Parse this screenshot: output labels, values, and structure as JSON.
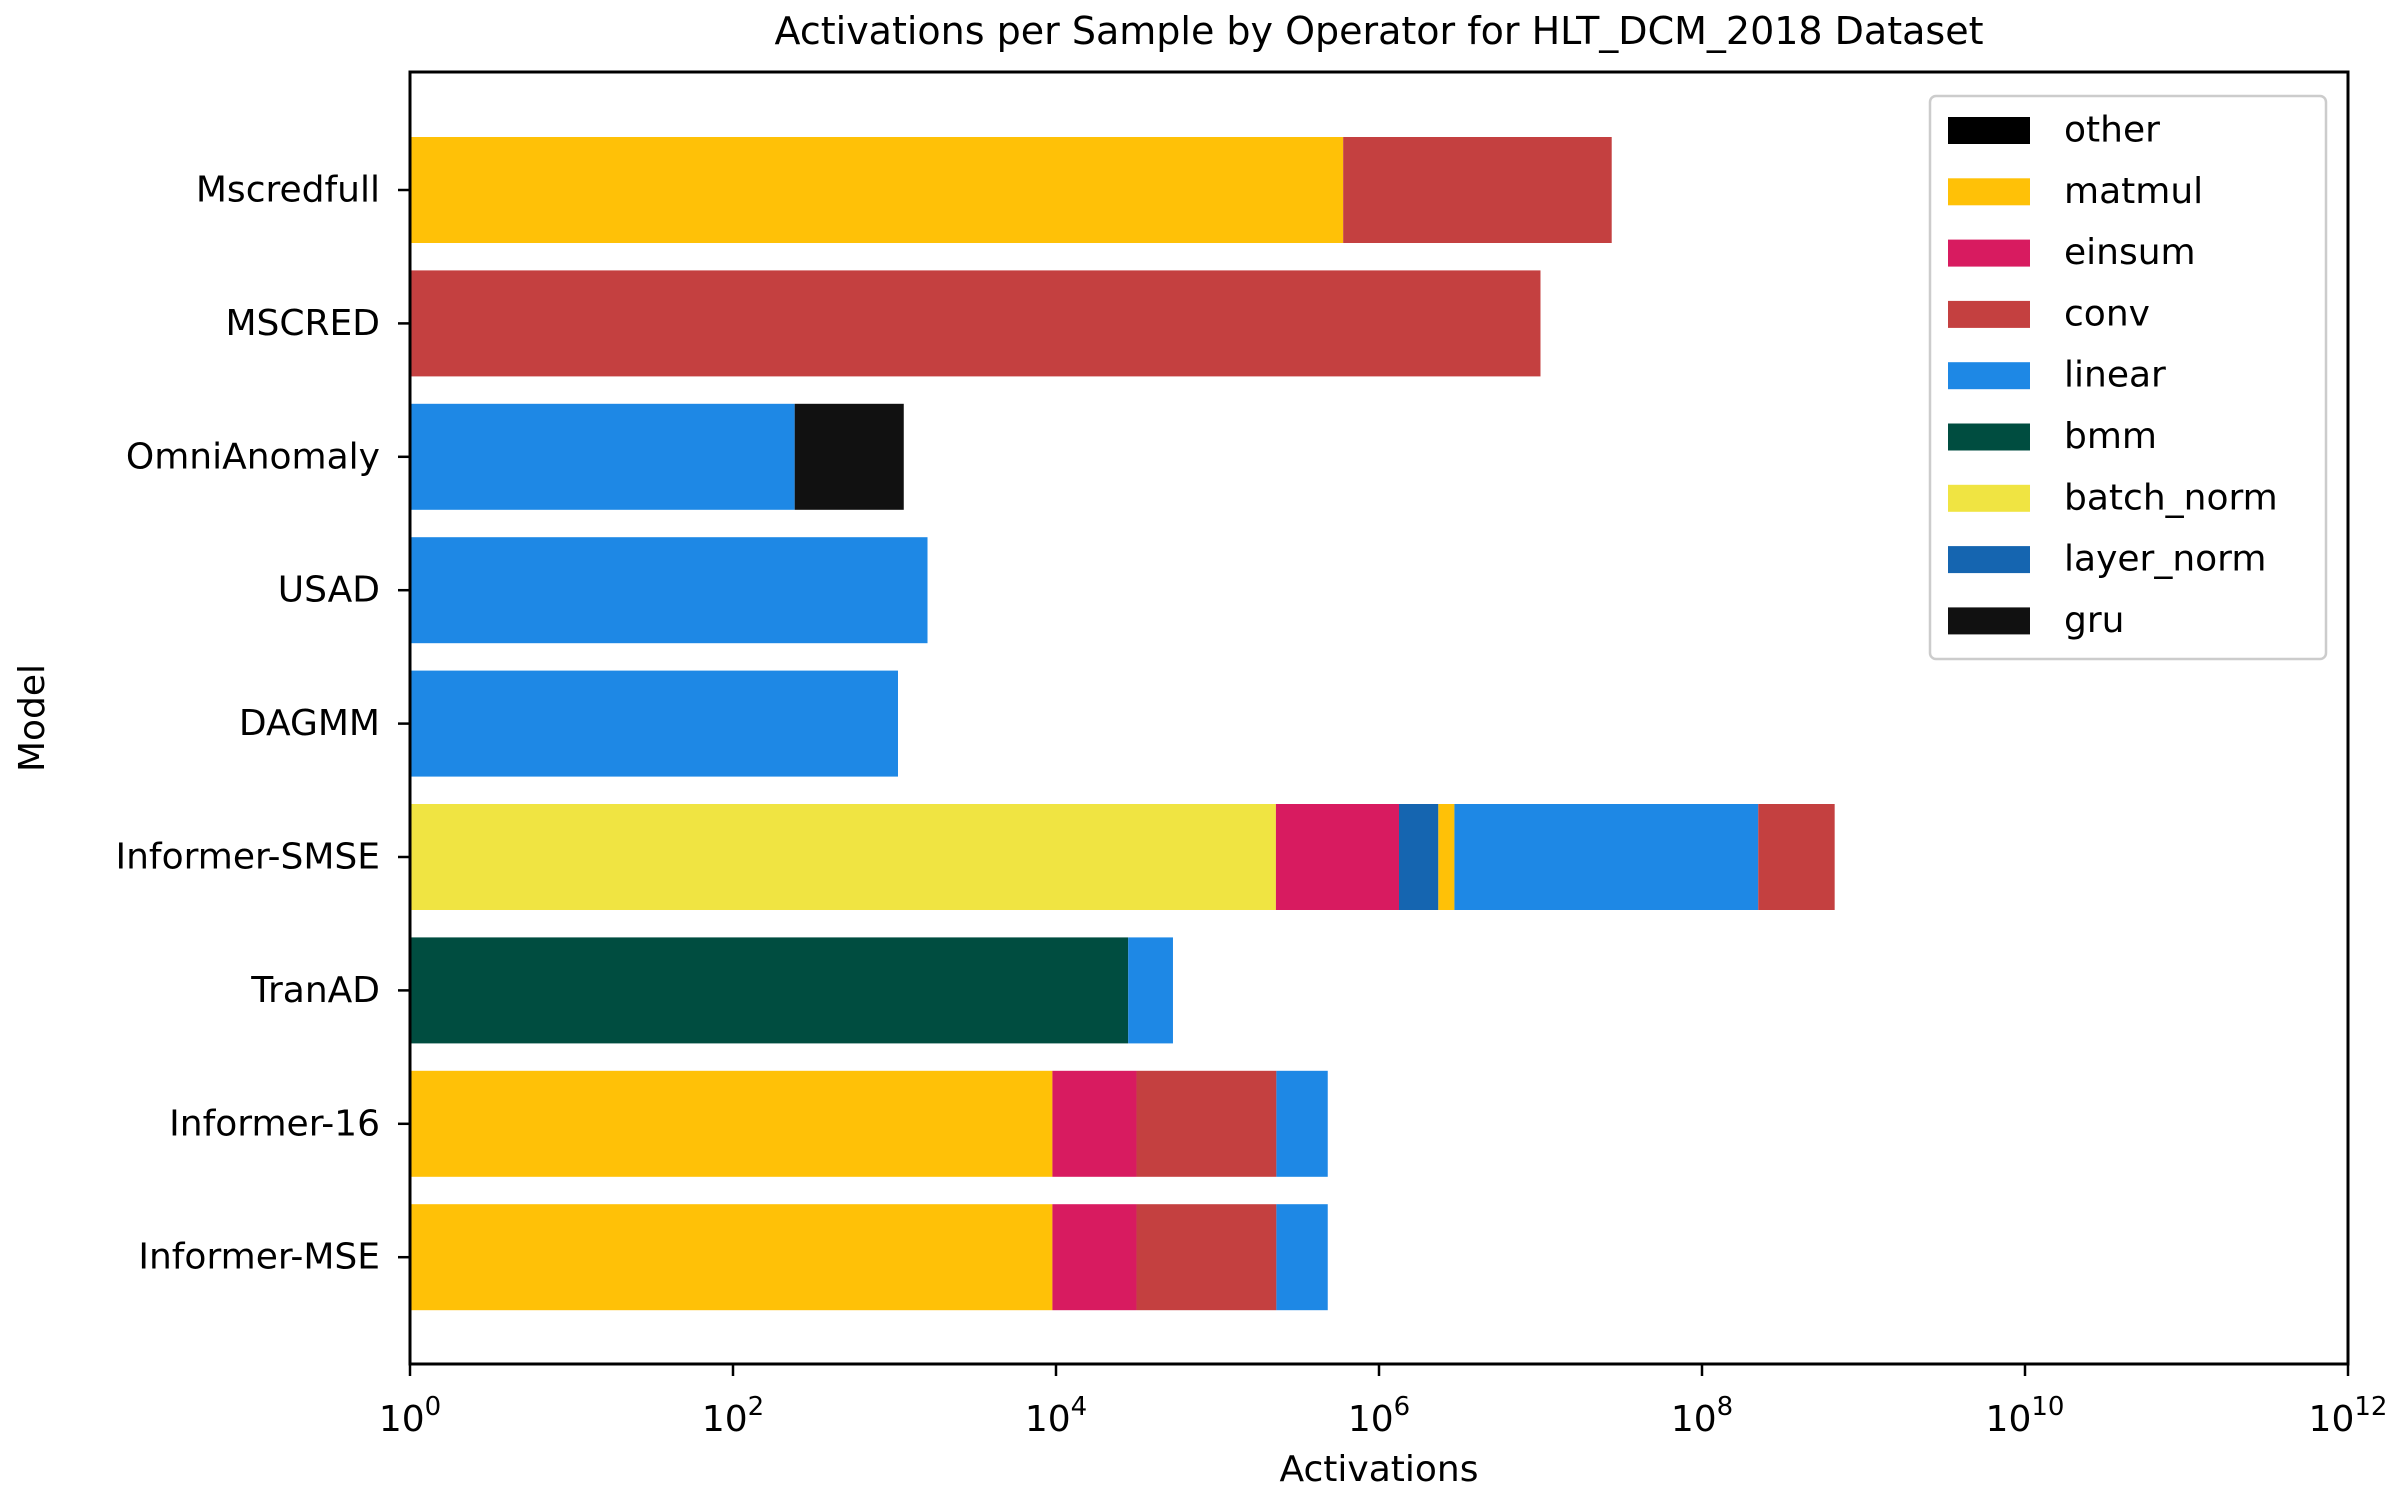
{
  "chart_data": {
    "type": "bar",
    "orientation": "horizontal",
    "stacked": true,
    "title": "Activations per Sample by Operator for HLT_DCM_2018 Dataset",
    "xlabel": "Activations",
    "ylabel": "Model",
    "xscale": "log",
    "xlim": [
      1,
      1000000000000
    ],
    "x_ticks": [
      {
        "value": 1,
        "base": "10",
        "exp": "0"
      },
      {
        "value": 100,
        "base": "10",
        "exp": "2"
      },
      {
        "value": 10000,
        "base": "10",
        "exp": "4"
      },
      {
        "value": 1000000,
        "base": "10",
        "exp": "6"
      },
      {
        "value": 100000000,
        "base": "10",
        "exp": "8"
      },
      {
        "value": 10000000000,
        "base": "10",
        "exp": "10"
      },
      {
        "value": 1000000000000,
        "base": "10",
        "exp": "12"
      }
    ],
    "grid": false,
    "legend_position": "top-right",
    "categories": [
      "Mscredfull",
      "MSCRED",
      "OmniAnomaly",
      "USAD",
      "DAGMM",
      "Informer-SMSE",
      "TranAD",
      "Informer-16",
      "Informer-MSE"
    ],
    "series": [
      {
        "name": "other",
        "color": "#000000",
        "values": [
          0,
          0,
          0,
          0,
          0,
          0,
          0,
          0,
          0
        ]
      },
      {
        "name": "matmul",
        "color": "#FFC107",
        "values": [
          600000,
          0,
          0,
          0,
          0,
          600000,
          0,
          9500,
          9500
        ]
      },
      {
        "name": "einsum",
        "color": "#D81B60",
        "values": [
          0,
          0,
          0,
          0,
          0,
          1100000,
          0,
          22000,
          22000
        ]
      },
      {
        "name": "conv",
        "color": "#C44040",
        "values": [
          27000000,
          10000000,
          0,
          0,
          0,
          440000000,
          0,
          200000,
          200000
        ]
      },
      {
        "name": "linear",
        "color": "#1E88E5",
        "values": [
          0,
          0,
          240,
          1600,
          1050,
          220000000,
          25000,
          250000,
          250000
        ]
      },
      {
        "name": "bmm",
        "color": "#004D40",
        "values": [
          0,
          0,
          0,
          0,
          0,
          0,
          28000,
          0,
          0
        ]
      },
      {
        "name": "batch_norm",
        "color": "#F0E442",
        "values": [
          0,
          0,
          0,
          0,
          0,
          230000,
          0,
          0,
          0
        ]
      },
      {
        "name": "layer_norm",
        "color": "#1565B0",
        "values": [
          0,
          0,
          0,
          0,
          0,
          1000000,
          0,
          0,
          0
        ]
      },
      {
        "name": "gru",
        "color": "#111111",
        "values": [
          0,
          0,
          900,
          0,
          0,
          0,
          0,
          0,
          0
        ]
      }
    ],
    "stack_order_left_to_right": [
      "batch_norm",
      "bmm",
      "matmul",
      "einsum",
      "layer_norm",
      "conv",
      "linear",
      "gru",
      "other"
    ],
    "row_stack_order": {
      "Mscredfull": [
        "matmul",
        "conv"
      ],
      "MSCRED": [
        "conv"
      ],
      "OmniAnomaly": [
        "linear",
        "gru"
      ],
      "USAD": [
        "linear"
      ],
      "DAGMM": [
        "linear"
      ],
      "Informer-SMSE": [
        "batch_norm",
        "einsum",
        "layer_norm",
        "matmul",
        "linear",
        "conv"
      ],
      "TranAD": [
        "bmm",
        "linear"
      ],
      "Informer-16": [
        "matmul",
        "einsum",
        "conv",
        "linear"
      ],
      "Informer-MSE": [
        "matmul",
        "einsum",
        "conv",
        "linear"
      ]
    }
  }
}
